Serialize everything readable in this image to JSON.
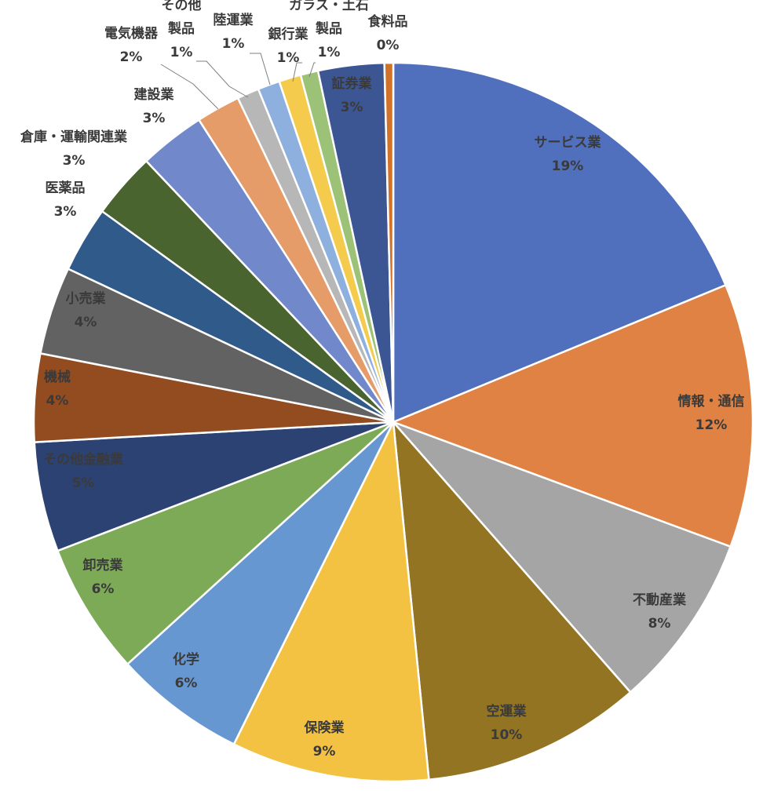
{
  "chart_data": {
    "type": "pie",
    "title": "",
    "legend": "none",
    "slices": [
      {
        "label": "サービス業",
        "value": 19,
        "value_label": "19%",
        "color": "#5070BE"
      },
      {
        "label": "情報・通信",
        "value": 12,
        "value_label": "12%",
        "color": "#DF8243"
      },
      {
        "label": "不動産業",
        "value": 8,
        "value_label": "8%",
        "color": "#A5A5A5"
      },
      {
        "label": "空運業",
        "value": 10,
        "value_label": "10%",
        "color": "#937423"
      },
      {
        "label": "保険業",
        "value": 9,
        "value_label": "9%",
        "color": "#F3C242"
      },
      {
        "label": "化学",
        "value": 6,
        "value_label": "6%",
        "color": "#6797D0"
      },
      {
        "label": "卸売業",
        "value": 6,
        "value_label": "6%",
        "color": "#7DAA56"
      },
      {
        "label": "その他金融業",
        "value": 5,
        "value_label": "5%",
        "color": "#2C4272"
      },
      {
        "label": "機械",
        "value": 4,
        "value_label": "4%",
        "color": "#934B20"
      },
      {
        "label": "小売業",
        "value": 4,
        "value_label": "4%",
        "color": "#626262"
      },
      {
        "label": "医薬品",
        "value": 3,
        "value_label": "3%",
        "color": "#305A8A"
      },
      {
        "label": "倉庫・運輸関連業",
        "value": 3,
        "value_label": "3%",
        "color": "#4A6430"
      },
      {
        "label": "建設業",
        "value": 3,
        "value_label": "3%",
        "color": "#7188CB"
      },
      {
        "label": "電気機器",
        "value": 2,
        "value_label": "2%",
        "color": "#E59C69"
      },
      {
        "label": "その他製品",
        "value": 1,
        "value_label": "1%",
        "color": "#B7B7B7"
      },
      {
        "label": "陸運業",
        "value": 1,
        "value_label": "1%",
        "color": "#8DB0DE"
      },
      {
        "label": "銀行業",
        "value": 1,
        "value_label": "1%",
        "color": "#F5CB4E"
      },
      {
        "label": "ガラス・土石製品",
        "value": 0.8,
        "value_label": "1%",
        "color": "#9BC276"
      },
      {
        "label": "証券業",
        "value": 3,
        "value_label": "3%",
        "color": "#3C5694"
      },
      {
        "label": "食料品",
        "value": 0.4,
        "value_label": "0%",
        "color": "#D07228"
      }
    ]
  }
}
